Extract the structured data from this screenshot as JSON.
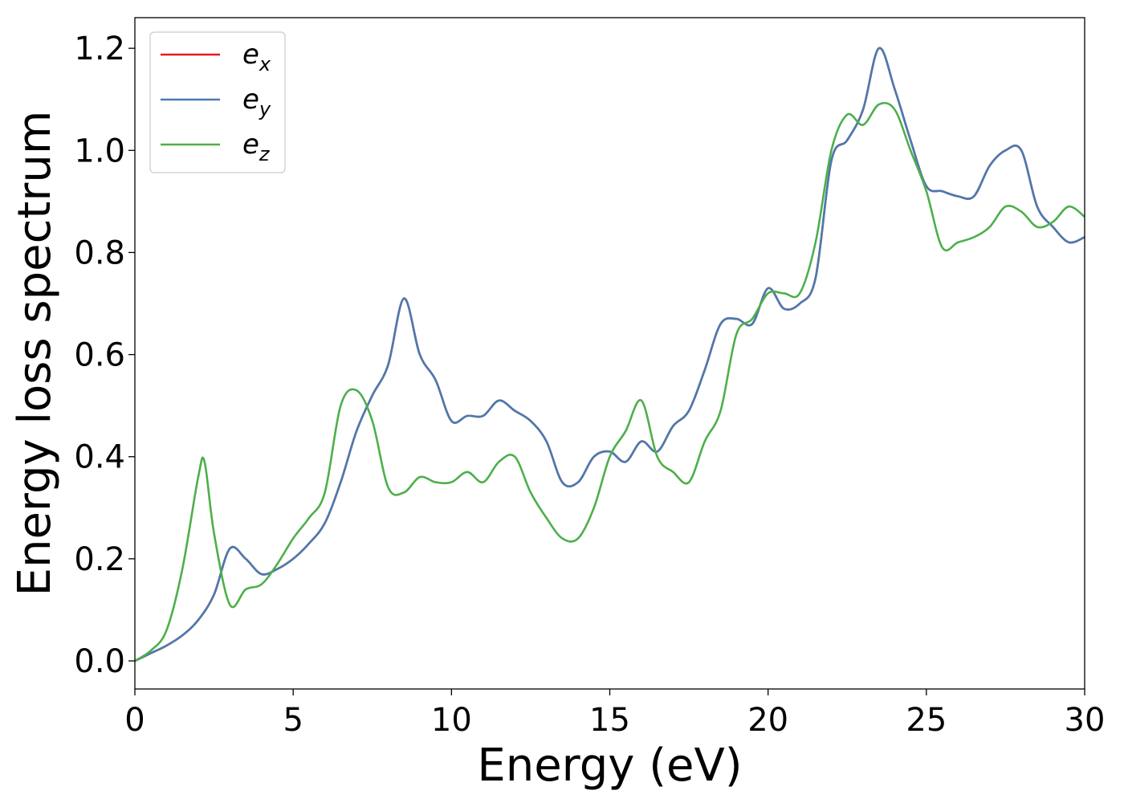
{
  "chart_data": {
    "type": "line",
    "title": "",
    "xlabel": "Energy (eV)",
    "ylabel": "Energy loss spectrum",
    "xlim": [
      0,
      30
    ],
    "ylim": [
      -0.055,
      1.26
    ],
    "xticks": [
      0,
      5,
      10,
      15,
      20,
      25,
      30
    ],
    "xtick_labels": [
      "0",
      "5",
      "10",
      "15",
      "20",
      "25",
      "30"
    ],
    "yticks": [
      0.0,
      0.2,
      0.4,
      0.6,
      0.8,
      1.0,
      1.2
    ],
    "ytick_labels": [
      "0.0",
      "0.2",
      "0.4",
      "0.6",
      "0.8",
      "1.0",
      "1.2"
    ],
    "grid": false,
    "legend_position": "upper-left",
    "series": [
      {
        "name": "e_x",
        "legend_base": "e",
        "legend_sub": "x",
        "color": "#e41a1c",
        "x": [
          0,
          0.5,
          1,
          1.5,
          2,
          2.5,
          3,
          3.5,
          4,
          4.5,
          5,
          5.5,
          6,
          6.5,
          7,
          7.5,
          8,
          8.5,
          9,
          9.5,
          10,
          10.5,
          11,
          11.5,
          12,
          12.5,
          13,
          13.5,
          14,
          14.5,
          15,
          15.5,
          16,
          16.5,
          17,
          17.5,
          18,
          18.5,
          19,
          19.5,
          20,
          20.5,
          21,
          21.5,
          22,
          22.5,
          23,
          23.5,
          24,
          24.5,
          25,
          25.5,
          26,
          26.5,
          27,
          27.5,
          28,
          28.5,
          29,
          29.5,
          30
        ],
        "y": [
          0,
          0.015,
          0.03,
          0.05,
          0.08,
          0.13,
          0.22,
          0.2,
          0.17,
          0.18,
          0.2,
          0.23,
          0.27,
          0.35,
          0.45,
          0.52,
          0.58,
          0.71,
          0.6,
          0.55,
          0.47,
          0.48,
          0.48,
          0.51,
          0.49,
          0.47,
          0.43,
          0.35,
          0.35,
          0.4,
          0.41,
          0.39,
          0.43,
          0.41,
          0.46,
          0.49,
          0.57,
          0.66,
          0.67,
          0.66,
          0.73,
          0.69,
          0.7,
          0.75,
          0.98,
          1.02,
          1.08,
          1.2,
          1.12,
          1.02,
          0.93,
          0.92,
          0.91,
          0.91,
          0.97,
          1.0,
          1.0,
          0.89,
          0.85,
          0.82,
          0.83
        ]
      },
      {
        "name": "e_y",
        "legend_base": "e",
        "legend_sub": "y",
        "color": "#4a7ab0",
        "x": [
          0,
          0.5,
          1,
          1.5,
          2,
          2.5,
          3,
          3.5,
          4,
          4.5,
          5,
          5.5,
          6,
          6.5,
          7,
          7.5,
          8,
          8.5,
          9,
          9.5,
          10,
          10.5,
          11,
          11.5,
          12,
          12.5,
          13,
          13.5,
          14,
          14.5,
          15,
          15.5,
          16,
          16.5,
          17,
          17.5,
          18,
          18.5,
          19,
          19.5,
          20,
          20.5,
          21,
          21.5,
          22,
          22.5,
          23,
          23.5,
          24,
          24.5,
          25,
          25.5,
          26,
          26.5,
          27,
          27.5,
          28,
          28.5,
          29,
          29.5,
          30
        ],
        "y": [
          0,
          0.015,
          0.03,
          0.05,
          0.08,
          0.13,
          0.22,
          0.2,
          0.17,
          0.18,
          0.2,
          0.23,
          0.27,
          0.35,
          0.45,
          0.52,
          0.58,
          0.71,
          0.6,
          0.55,
          0.47,
          0.48,
          0.48,
          0.51,
          0.49,
          0.47,
          0.43,
          0.35,
          0.35,
          0.4,
          0.41,
          0.39,
          0.43,
          0.41,
          0.46,
          0.49,
          0.57,
          0.66,
          0.67,
          0.66,
          0.73,
          0.69,
          0.7,
          0.75,
          0.98,
          1.02,
          1.08,
          1.2,
          1.12,
          1.02,
          0.93,
          0.92,
          0.91,
          0.91,
          0.97,
          1.0,
          1.0,
          0.89,
          0.85,
          0.82,
          0.83
        ]
      },
      {
        "name": "e_z",
        "legend_base": "e",
        "legend_sub": "z",
        "color": "#4daf4a",
        "x": [
          0,
          0.5,
          1,
          1.5,
          2,
          2.2,
          2.5,
          3,
          3.5,
          4,
          4.5,
          5,
          5.5,
          6,
          6.5,
          7,
          7.5,
          8,
          8.5,
          9,
          9.5,
          10,
          10.5,
          11,
          11.5,
          12,
          12.5,
          13,
          13.5,
          14,
          14.5,
          15,
          15.5,
          16,
          16.5,
          17,
          17.5,
          18,
          18.5,
          19,
          19.5,
          20,
          20.5,
          21,
          21.5,
          22,
          22.5,
          23,
          23.5,
          24,
          24.5,
          25,
          25.5,
          26,
          26.5,
          27,
          27.5,
          28,
          28.5,
          29,
          29.5,
          30
        ],
        "y": [
          0,
          0.02,
          0.06,
          0.18,
          0.36,
          0.39,
          0.25,
          0.11,
          0.14,
          0.15,
          0.19,
          0.24,
          0.28,
          0.33,
          0.5,
          0.53,
          0.47,
          0.34,
          0.33,
          0.36,
          0.35,
          0.35,
          0.37,
          0.35,
          0.39,
          0.4,
          0.33,
          0.28,
          0.24,
          0.24,
          0.3,
          0.4,
          0.45,
          0.51,
          0.4,
          0.37,
          0.35,
          0.43,
          0.49,
          0.64,
          0.67,
          0.72,
          0.72,
          0.72,
          0.82,
          1.0,
          1.07,
          1.05,
          1.09,
          1.08,
          1.0,
          0.92,
          0.81,
          0.82,
          0.83,
          0.85,
          0.89,
          0.88,
          0.85,
          0.86,
          0.89,
          0.87
        ]
      }
    ]
  }
}
